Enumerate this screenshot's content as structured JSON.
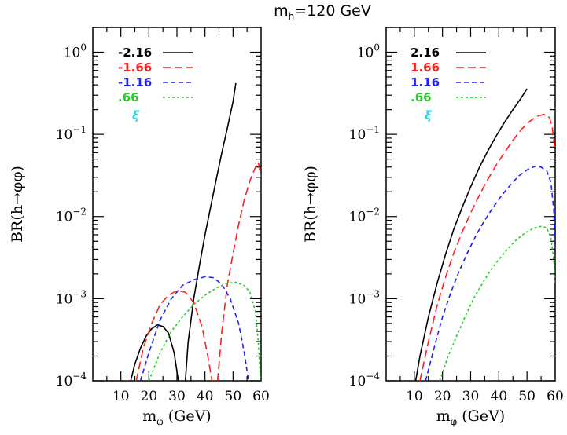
{
  "title_main": "m",
  "title_sub": "h",
  "title_rest": "=120 GeV",
  "colors": {
    "black": "#000000",
    "red": "#ff2020",
    "blue": "#2020ff",
    "green": "#20d020",
    "cyan": "#30d0e0"
  },
  "chart_data": [
    {
      "type": "line",
      "xlabel_main": "m",
      "xlabel_sub": "φ",
      "xlabel_rest": " (GeV)",
      "ylabel": "BR(h→φφ)",
      "xlim": [
        0,
        60
      ],
      "ylim": [
        0.0001,
        2
      ],
      "yscale": "log",
      "xticks": [
        "10",
        "20",
        "30",
        "40",
        "50",
        "60"
      ],
      "yticks": [
        {
          "value": 1,
          "exp": "0"
        },
        {
          "value": 0.1,
          "exp": "−1"
        },
        {
          "value": 0.01,
          "exp": "−2"
        },
        {
          "value": 0.001,
          "exp": "−3"
        },
        {
          "value": 0.0001,
          "exp": "−4"
        }
      ],
      "legend_title": "ξ",
      "series": [
        {
          "name": "-2.16",
          "color": "#000000",
          "dash": "solid",
          "segments": [
            [
              [
                13.5,
                0.0001
              ],
              [
                15,
                0.00016
              ],
              [
                17,
                0.00025
              ],
              [
                19,
                0.00035
              ],
              [
                21,
                0.00043
              ],
              [
                23,
                0.00048
              ],
              [
                25,
                0.00046
              ],
              [
                27,
                0.00038
              ],
              [
                29,
                0.00022
              ],
              [
                30.5,
                0.0001
              ]
            ],
            [
              [
                33,
                0.0001
              ],
              [
                34,
                0.0003
              ],
              [
                36,
                0.001
              ],
              [
                38,
                0.0025
              ],
              [
                40,
                0.006
              ],
              [
                42,
                0.013
              ],
              [
                44,
                0.028
              ],
              [
                46,
                0.06
              ],
              [
                48,
                0.12
              ],
              [
                50,
                0.25
              ],
              [
                51,
                0.42
              ]
            ]
          ]
        },
        {
          "name": "-1.66",
          "color": "#ff2020",
          "dash": "long",
          "segments": [
            [
              [
                15.5,
                0.0001
              ],
              [
                18,
                0.00025
              ],
              [
                21,
                0.0005
              ],
              [
                24,
                0.00085
              ],
              [
                27,
                0.0011
              ],
              [
                30,
                0.00125
              ],
              [
                33,
                0.0012
              ],
              [
                36,
                0.0009
              ],
              [
                39,
                0.00045
              ],
              [
                41,
                0.0002
              ],
              [
                42.5,
                0.0001
              ]
            ],
            [
              [
                44.5,
                0.0001
              ],
              [
                46,
                0.0004
              ],
              [
                48,
                0.0015
              ],
              [
                50,
                0.0035
              ],
              [
                52,
                0.008
              ],
              [
                54,
                0.016
              ],
              [
                56,
                0.027
              ],
              [
                58,
                0.04
              ],
              [
                59,
                0.046
              ],
              [
                60,
                0.03
              ]
            ]
          ]
        },
        {
          "name": "-1.16",
          "color": "#2020ff",
          "dash": "medium",
          "segments": [
            [
              [
                17,
                0.0001
              ],
              [
                20,
                0.00022
              ],
              [
                24,
                0.00055
              ],
              [
                28,
                0.001
              ],
              [
                32,
                0.00145
              ],
              [
                36,
                0.0017
              ],
              [
                40,
                0.00185
              ],
              [
                43,
                0.0018
              ],
              [
                46,
                0.0015
              ],
              [
                49,
                0.001
              ],
              [
                52,
                0.0005
              ],
              [
                54,
                0.00022
              ],
              [
                55.5,
                0.0001
              ]
            ]
          ]
        },
        {
          "name": ".66",
          "color": "#20d020",
          "dash": "short",
          "segments": [
            [
              [
                20,
                0.0001
              ],
              [
                24,
                0.00022
              ],
              [
                28,
                0.0004
              ],
              [
                32,
                0.0006
              ],
              [
                36,
                0.00085
              ],
              [
                40,
                0.0011
              ],
              [
                44,
                0.00135
              ],
              [
                48,
                0.00155
              ],
              [
                51,
                0.00158
              ],
              [
                54,
                0.00145
              ],
              [
                56,
                0.0012
              ],
              [
                58,
                0.0007
              ],
              [
                59,
                0.0003
              ],
              [
                59.8,
                0.0001
              ]
            ]
          ]
        }
      ]
    },
    {
      "type": "line",
      "xlabel_main": "m",
      "xlabel_sub": "φ",
      "xlabel_rest": " (GeV)",
      "ylabel": "BR(h→φφ)",
      "xlim": [
        0,
        60
      ],
      "ylim": [
        0.0001,
        2
      ],
      "yscale": "log",
      "xticks": [
        "10",
        "20",
        "30",
        "40",
        "50",
        "60"
      ],
      "yticks": [
        {
          "value": 1,
          "exp": "0"
        },
        {
          "value": 0.1,
          "exp": "−1"
        },
        {
          "value": 0.01,
          "exp": "−2"
        },
        {
          "value": 0.001,
          "exp": "−3"
        },
        {
          "value": 0.0001,
          "exp": "−4"
        }
      ],
      "legend_title": "ξ",
      "series": [
        {
          "name": "2.16",
          "color": "#000000",
          "dash": "solid",
          "segments": [
            [
              [
                10.5,
                0.0001
              ],
              [
                12,
                0.0002
              ],
              [
                15,
                0.0006
              ],
              [
                18,
                0.0015
              ],
              [
                21,
                0.0034
              ],
              [
                24,
                0.007
              ],
              [
                27,
                0.013
              ],
              [
                30,
                0.023
              ],
              [
                33,
                0.039
              ],
              [
                36,
                0.062
              ],
              [
                39,
                0.095
              ],
              [
                42,
                0.14
              ],
              [
                45,
                0.2
              ],
              [
                48,
                0.28
              ],
              [
                50,
                0.36
              ]
            ]
          ]
        },
        {
          "name": "1.66",
          "color": "#ff2020",
          "dash": "long",
          "segments": [
            [
              [
                12,
                0.0001
              ],
              [
                15,
                0.0003
              ],
              [
                18,
                0.0008
              ],
              [
                21,
                0.0018
              ],
              [
                24,
                0.0036
              ],
              [
                27,
                0.0065
              ],
              [
                30,
                0.011
              ],
              [
                33,
                0.018
              ],
              [
                36,
                0.028
              ],
              [
                39,
                0.042
              ],
              [
                42,
                0.06
              ],
              [
                45,
                0.085
              ],
              [
                48,
                0.115
              ],
              [
                51,
                0.145
              ],
              [
                54,
                0.168
              ],
              [
                56,
                0.175
              ],
              [
                58,
                0.16
              ],
              [
                59,
                0.12
              ],
              [
                60,
                0.06
              ]
            ]
          ]
        },
        {
          "name": "1.16",
          "color": "#2020ff",
          "dash": "medium",
          "segments": [
            [
              [
                14,
                0.0001
              ],
              [
                17,
                0.00025
              ],
              [
                20,
                0.0006
              ],
              [
                23,
                0.0012
              ],
              [
                26,
                0.0022
              ],
              [
                29,
                0.0037
              ],
              [
                32,
                0.006
              ],
              [
                35,
                0.009
              ],
              [
                38,
                0.013
              ],
              [
                41,
                0.018
              ],
              [
                44,
                0.024
              ],
              [
                47,
                0.031
              ],
              [
                50,
                0.037
              ],
              [
                53,
                0.041
              ],
              [
                55,
                0.04
              ],
              [
                57,
                0.036
              ],
              [
                58.5,
                0.026
              ],
              [
                59.5,
                0.012
              ],
              [
                60,
                0.003
              ]
            ]
          ]
        },
        {
          "name": ".66",
          "color": "#20d020",
          "dash": "short",
          "segments": [
            [
              [
                19,
                0.0001
              ],
              [
                22,
                0.0002
              ],
              [
                25,
                0.00035
              ],
              [
                28,
                0.0006
              ],
              [
                31,
                0.001
              ],
              [
                34,
                0.0015
              ],
              [
                37,
                0.0022
              ],
              [
                40,
                0.003
              ],
              [
                43,
                0.004
              ],
              [
                46,
                0.0051
              ],
              [
                49,
                0.0062
              ],
              [
                52,
                0.0071
              ],
              [
                55,
                0.0076
              ],
              [
                57,
                0.0073
              ],
              [
                58.5,
                0.0055
              ],
              [
                59.5,
                0.003
              ],
              [
                60,
                0.0015
              ]
            ]
          ]
        }
      ]
    }
  ]
}
